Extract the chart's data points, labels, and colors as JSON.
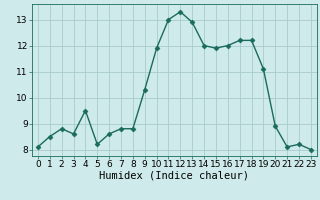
{
  "x": [
    0,
    1,
    2,
    3,
    4,
    5,
    6,
    7,
    8,
    9,
    10,
    11,
    12,
    13,
    14,
    15,
    16,
    17,
    18,
    19,
    20,
    21,
    22,
    23
  ],
  "y": [
    8.1,
    8.5,
    8.8,
    8.6,
    9.5,
    8.2,
    8.6,
    8.8,
    8.8,
    10.3,
    11.9,
    13.0,
    13.3,
    12.9,
    12.0,
    11.9,
    12.0,
    12.2,
    12.2,
    11.1,
    8.9,
    8.1,
    8.2,
    8.0
  ],
  "line_color": "#1a6b5e",
  "marker": "D",
  "marker_size": 2.5,
  "bg_color": "#ceeaea",
  "grid_color": "#aacccc",
  "xlabel": "Humidex (Indice chaleur)",
  "xlim": [
    -0.5,
    23.5
  ],
  "ylim": [
    7.75,
    13.6
  ],
  "yticks": [
    8,
    9,
    10,
    11,
    12,
    13
  ],
  "xticks": [
    0,
    1,
    2,
    3,
    4,
    5,
    6,
    7,
    8,
    9,
    10,
    11,
    12,
    13,
    14,
    15,
    16,
    17,
    18,
    19,
    20,
    21,
    22,
    23
  ],
  "xlabel_fontsize": 7.5,
  "tick_fontsize": 6.5,
  "linewidth": 1.0
}
